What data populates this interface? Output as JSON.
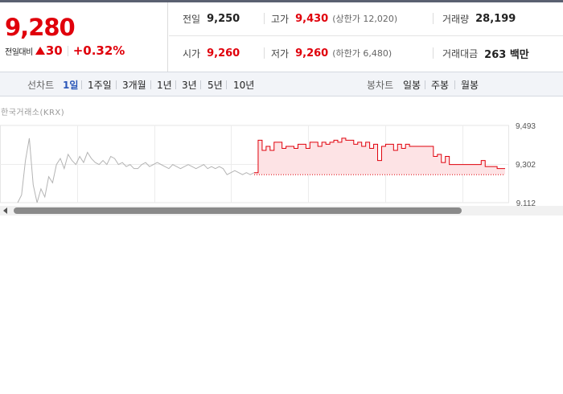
{
  "quote": {
    "price": "9,280",
    "change_label": "전일대비",
    "change_icon": "up-triangle-icon",
    "change_value": "30",
    "change_pct": "+0.32%"
  },
  "stats": {
    "prev_close_label": "전일",
    "prev_close": "9,250",
    "high_label": "고가",
    "high": "9,430",
    "upper_limit": "(상한가 12,020)",
    "volume_label": "거래량",
    "volume": "28,199",
    "open_label": "시가",
    "open": "9,260",
    "low_label": "저가",
    "low": "9,260",
    "lower_limit": "(하한가 6,480)",
    "amount_label": "거래대금",
    "amount": "263 백만"
  },
  "tabs": {
    "line_label": "선차트",
    "line_periods": [
      "1일",
      "1주일",
      "3개월",
      "1년",
      "3년",
      "5년",
      "10년"
    ],
    "active_period": "1일",
    "candle_label": "봉차트",
    "candle_periods": [
      "일봉",
      "주봉",
      "월봉"
    ]
  },
  "source_label": "한국거래소(KRX)",
  "colors": {
    "up": "#e0000b",
    "active_tab": "#2a56b8",
    "prior_line": "#b4b4b4",
    "area_fill": "#fde3e5"
  },
  "chart_data": {
    "type": "line",
    "y_ticks": [
      "9,493",
      "9,302",
      "9,112"
    ],
    "ylim": [
      9112,
      9493
    ],
    "baseline": 9250,
    "grid": true,
    "series": [
      {
        "values": [
          9112,
          9150,
          9320,
          9430,
          9200,
          9112,
          9180,
          9140,
          9240,
          9210,
          9300,
          9330,
          9280,
          9350,
          9320,
          9300,
          9340,
          9310,
          9360,
          9330,
          9310,
          9300,
          9320,
          9300,
          9340,
          9330,
          9300,
          9310,
          9290,
          9300,
          9280,
          9280,
          9300,
          9310,
          9290,
          9300,
          9310,
          9300,
          9290,
          9280,
          9300,
          9290,
          9280,
          9290,
          9300,
          9290,
          9280,
          9290,
          9300,
          9280,
          9290,
          9280,
          9290,
          9280,
          9250,
          9260,
          9270,
          9260,
          9250,
          9260,
          9250,
          9260
        ]
      },
      {
        "values": [
          9260,
          9420,
          9370,
          9390,
          9370,
          9410,
          9410,
          9380,
          9390,
          9390,
          9380,
          9400,
          9400,
          9380,
          9410,
          9410,
          9390,
          9410,
          9400,
          9410,
          9420,
          9410,
          9430,
          9420,
          9420,
          9400,
          9410,
          9390,
          9410,
          9380,
          9400,
          9320,
          9390,
          9400,
          9400,
          9370,
          9400,
          9380,
          9400,
          9390,
          9390,
          9390,
          9390,
          9390,
          9390,
          9340,
          9350,
          9310,
          9340,
          9300,
          9300,
          9300,
          9300,
          9300,
          9300,
          9300,
          9300,
          9320,
          9290,
          9290,
          9290,
          9280,
          9280,
          9280
        ]
      }
    ]
  }
}
